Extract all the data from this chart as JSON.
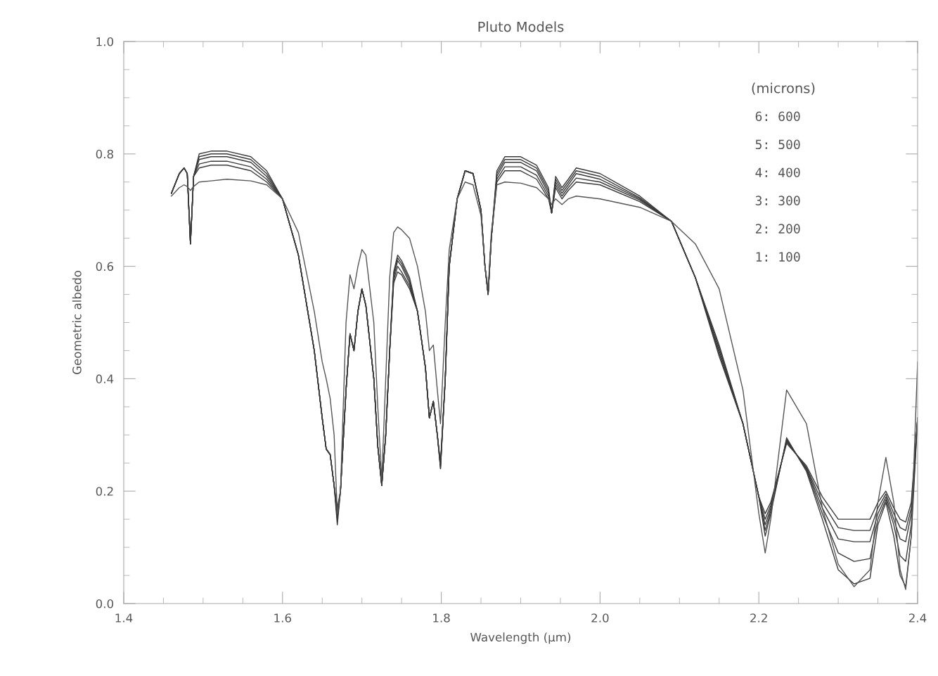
{
  "chart_data": {
    "type": "line",
    "title": "Pluto Models",
    "xlabel": "Wavelength (μm)",
    "ylabel": "Geometric albedo",
    "annotations": [
      "(microns)",
      "6: 600",
      "5: 500",
      "4: 400",
      "3: 300",
      "2: 200",
      "1: 100"
    ],
    "xlim": [
      1.4,
      2.4
    ],
    "xticks": [
      1.4,
      1.6,
      1.8,
      {
        "value": 2,
        "label": "2.0"
      },
      2.2,
      2.4
    ],
    "ylim": [
      0,
      1
    ],
    "yticks": [
      {
        "value": 0,
        "label": "0.0"
      },
      0.2,
      0.4,
      0.6,
      0.8,
      {
        "value": 1,
        "label": "1.0"
      }
    ],
    "x": [
      1.46,
      1.47,
      1.476,
      1.48,
      1.484,
      1.488,
      1.495,
      1.51,
      1.53,
      1.56,
      1.58,
      1.6,
      1.62,
      1.64,
      1.65,
      1.655,
      1.66,
      1.665,
      1.669,
      1.673,
      1.68,
      1.685,
      1.69,
      1.695,
      1.7,
      1.705,
      1.715,
      1.72,
      1.725,
      1.73,
      1.735,
      1.74,
      1.745,
      1.75,
      1.76,
      1.77,
      1.78,
      1.785,
      1.79,
      1.795,
      1.799,
      1.805,
      1.81,
      1.82,
      1.83,
      1.84,
      1.85,
      1.855,
      1.859,
      1.863,
      1.87,
      1.88,
      1.9,
      1.92,
      1.935,
      1.939,
      1.944,
      1.952,
      1.96,
      1.97,
      2.0,
      2.05,
      2.09,
      2.12,
      2.15,
      2.18,
      2.2,
      2.208,
      2.215,
      2.235,
      2.26,
      2.28,
      2.3,
      2.32,
      2.34,
      2.35,
      2.36,
      2.37,
      2.378,
      2.385,
      2.392,
      2.4
    ],
    "series": [
      {
        "color": "#3a3a3a",
        "values": [
          0.73,
          0.765,
          0.775,
          0.765,
          0.64,
          0.76,
          0.775,
          0.78,
          0.78,
          0.77,
          0.75,
          0.72,
          0.62,
          0.45,
          0.33,
          0.275,
          0.265,
          0.21,
          0.17,
          0.2,
          0.38,
          0.48,
          0.45,
          0.52,
          0.56,
          0.53,
          0.4,
          0.28,
          0.21,
          0.3,
          0.45,
          0.57,
          0.59,
          0.585,
          0.56,
          0.52,
          0.42,
          0.33,
          0.36,
          0.3,
          0.25,
          0.4,
          0.6,
          0.72,
          0.77,
          0.765,
          0.7,
          0.6,
          0.55,
          0.65,
          0.75,
          0.77,
          0.77,
          0.755,
          0.72,
          0.695,
          0.74,
          0.72,
          0.735,
          0.75,
          0.745,
          0.715,
          0.68,
          0.58,
          0.44,
          0.32,
          0.19,
          0.16,
          0.18,
          0.285,
          0.245,
          0.19,
          0.15,
          0.15,
          0.15,
          0.18,
          0.2,
          0.17,
          0.15,
          0.145,
          0.18,
          0.33
        ]
      },
      {
        "color": "#3a3a3a",
        "values": [
          0.73,
          0.765,
          0.775,
          0.765,
          0.64,
          0.76,
          0.782,
          0.787,
          0.787,
          0.777,
          0.755,
          0.72,
          0.62,
          0.45,
          0.33,
          0.275,
          0.265,
          0.21,
          0.16,
          0.2,
          0.38,
          0.48,
          0.45,
          0.52,
          0.56,
          0.53,
          0.4,
          0.28,
          0.21,
          0.3,
          0.45,
          0.575,
          0.6,
          0.59,
          0.565,
          0.52,
          0.42,
          0.33,
          0.36,
          0.3,
          0.245,
          0.4,
          0.6,
          0.72,
          0.77,
          0.765,
          0.7,
          0.6,
          0.55,
          0.65,
          0.755,
          0.777,
          0.777,
          0.762,
          0.725,
          0.695,
          0.745,
          0.725,
          0.74,
          0.757,
          0.75,
          0.718,
          0.68,
          0.58,
          0.445,
          0.32,
          0.19,
          0.15,
          0.175,
          0.288,
          0.242,
          0.18,
          0.135,
          0.13,
          0.13,
          0.17,
          0.195,
          0.16,
          0.135,
          0.13,
          0.17,
          0.33
        ]
      },
      {
        "color": "#3a3a3a",
        "values": [
          0.73,
          0.765,
          0.775,
          0.765,
          0.64,
          0.76,
          0.79,
          0.795,
          0.795,
          0.785,
          0.76,
          0.72,
          0.62,
          0.45,
          0.33,
          0.275,
          0.265,
          0.21,
          0.155,
          0.2,
          0.38,
          0.48,
          0.45,
          0.52,
          0.56,
          0.53,
          0.4,
          0.28,
          0.21,
          0.3,
          0.45,
          0.58,
          0.61,
          0.6,
          0.57,
          0.52,
          0.42,
          0.33,
          0.36,
          0.3,
          0.245,
          0.4,
          0.6,
          0.72,
          0.77,
          0.765,
          0.7,
          0.6,
          0.55,
          0.65,
          0.76,
          0.785,
          0.785,
          0.77,
          0.73,
          0.695,
          0.75,
          0.73,
          0.745,
          0.765,
          0.755,
          0.72,
          0.68,
          0.58,
          0.45,
          0.32,
          0.19,
          0.14,
          0.17,
          0.29,
          0.24,
          0.17,
          0.115,
          0.11,
          0.11,
          0.16,
          0.19,
          0.15,
          0.115,
          0.11,
          0.16,
          0.33
        ]
      },
      {
        "color": "#3a3a3a",
        "values": [
          0.73,
          0.765,
          0.775,
          0.765,
          0.64,
          0.76,
          0.795,
          0.8,
          0.8,
          0.79,
          0.765,
          0.72,
          0.62,
          0.45,
          0.33,
          0.275,
          0.265,
          0.21,
          0.15,
          0.2,
          0.38,
          0.48,
          0.45,
          0.52,
          0.56,
          0.53,
          0.4,
          0.28,
          0.21,
          0.3,
          0.45,
          0.585,
          0.615,
          0.605,
          0.575,
          0.52,
          0.42,
          0.33,
          0.36,
          0.3,
          0.24,
          0.4,
          0.6,
          0.72,
          0.77,
          0.765,
          0.7,
          0.6,
          0.55,
          0.65,
          0.765,
          0.79,
          0.79,
          0.775,
          0.735,
          0.695,
          0.755,
          0.735,
          0.75,
          0.77,
          0.76,
          0.722,
          0.68,
          0.58,
          0.455,
          0.32,
          0.19,
          0.13,
          0.165,
          0.292,
          0.238,
          0.16,
          0.09,
          0.075,
          0.08,
          0.15,
          0.185,
          0.14,
          0.085,
          0.075,
          0.14,
          0.33
        ]
      },
      {
        "color": "#3a3a3a",
        "values": [
          0.73,
          0.765,
          0.775,
          0.765,
          0.64,
          0.76,
          0.8,
          0.805,
          0.805,
          0.795,
          0.77,
          0.72,
          0.62,
          0.45,
          0.33,
          0.275,
          0.265,
          0.21,
          0.14,
          0.2,
          0.38,
          0.48,
          0.45,
          0.52,
          0.56,
          0.53,
          0.4,
          0.28,
          0.21,
          0.3,
          0.45,
          0.59,
          0.62,
          0.61,
          0.58,
          0.52,
          0.42,
          0.33,
          0.36,
          0.3,
          0.24,
          0.4,
          0.6,
          0.72,
          0.77,
          0.765,
          0.7,
          0.6,
          0.55,
          0.65,
          0.77,
          0.795,
          0.795,
          0.78,
          0.74,
          0.695,
          0.76,
          0.74,
          0.755,
          0.775,
          0.765,
          0.725,
          0.68,
          0.58,
          0.46,
          0.32,
          0.19,
          0.12,
          0.16,
          0.295,
          0.235,
          0.15,
          0.06,
          0.035,
          0.045,
          0.14,
          0.18,
          0.12,
          0.05,
          0.03,
          0.12,
          0.33
        ]
      },
      {
        "color": "#555555",
        "values": [
          0.725,
          0.74,
          0.745,
          0.742,
          0.735,
          0.742,
          0.75,
          0.752,
          0.755,
          0.752,
          0.745,
          0.72,
          0.66,
          0.52,
          0.43,
          0.4,
          0.365,
          0.3,
          0.16,
          0.2,
          0.5,
          0.585,
          0.56,
          0.6,
          0.63,
          0.62,
          0.5,
          0.35,
          0.22,
          0.4,
          0.58,
          0.66,
          0.67,
          0.665,
          0.65,
          0.6,
          0.52,
          0.45,
          0.46,
          0.38,
          0.32,
          0.5,
          0.63,
          0.72,
          0.75,
          0.745,
          0.69,
          0.6,
          0.56,
          0.66,
          0.745,
          0.75,
          0.748,
          0.74,
          0.72,
          0.71,
          0.72,
          0.71,
          0.72,
          0.725,
          0.72,
          0.705,
          0.68,
          0.64,
          0.56,
          0.38,
          0.16,
          0.09,
          0.15,
          0.38,
          0.32,
          0.17,
          0.07,
          0.03,
          0.06,
          0.18,
          0.26,
          0.18,
          0.06,
          0.025,
          0.12,
          0.43
        ]
      }
    ]
  }
}
